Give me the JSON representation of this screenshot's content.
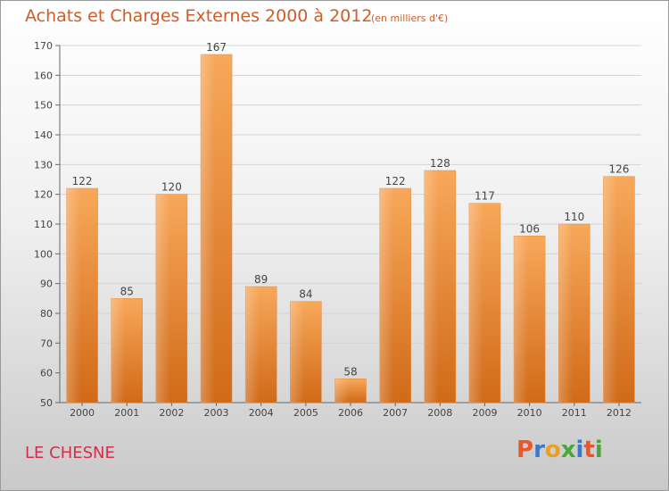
{
  "header": {
    "title": "Achats et Charges Externes 2000 à 2012",
    "unit": "(en milliers d'€)"
  },
  "footer": {
    "place": "LE CHESNE",
    "logo": "Proxiti"
  },
  "colors": {
    "title": "#d05c28",
    "place": "#d0304c",
    "bar_light": "#f8a85a",
    "bar_dark": "#d06a18",
    "logo_letters": [
      "#e8582a",
      "#3a78c8",
      "#e8a020",
      "#4aa83a",
      "#3a78c8",
      "#e8582a",
      "#4aa83a"
    ]
  },
  "chart_data": {
    "type": "bar",
    "title": "Achats et Charges Externes 2000 à 2012",
    "subtitle": "(en milliers d'€)",
    "categories": [
      "2000",
      "2001",
      "2002",
      "2003",
      "2004",
      "2005",
      "2006",
      "2007",
      "2008",
      "2009",
      "2010",
      "2011",
      "2012"
    ],
    "values": [
      122,
      85,
      120,
      167,
      89,
      84,
      58,
      122,
      128,
      117,
      106,
      110,
      126
    ],
    "xlabel": "",
    "ylabel": "",
    "ylim": [
      50,
      170
    ],
    "yticks": [
      50,
      60,
      70,
      80,
      90,
      100,
      110,
      120,
      130,
      140,
      150,
      160,
      170
    ],
    "grid": true,
    "legend": "none"
  }
}
